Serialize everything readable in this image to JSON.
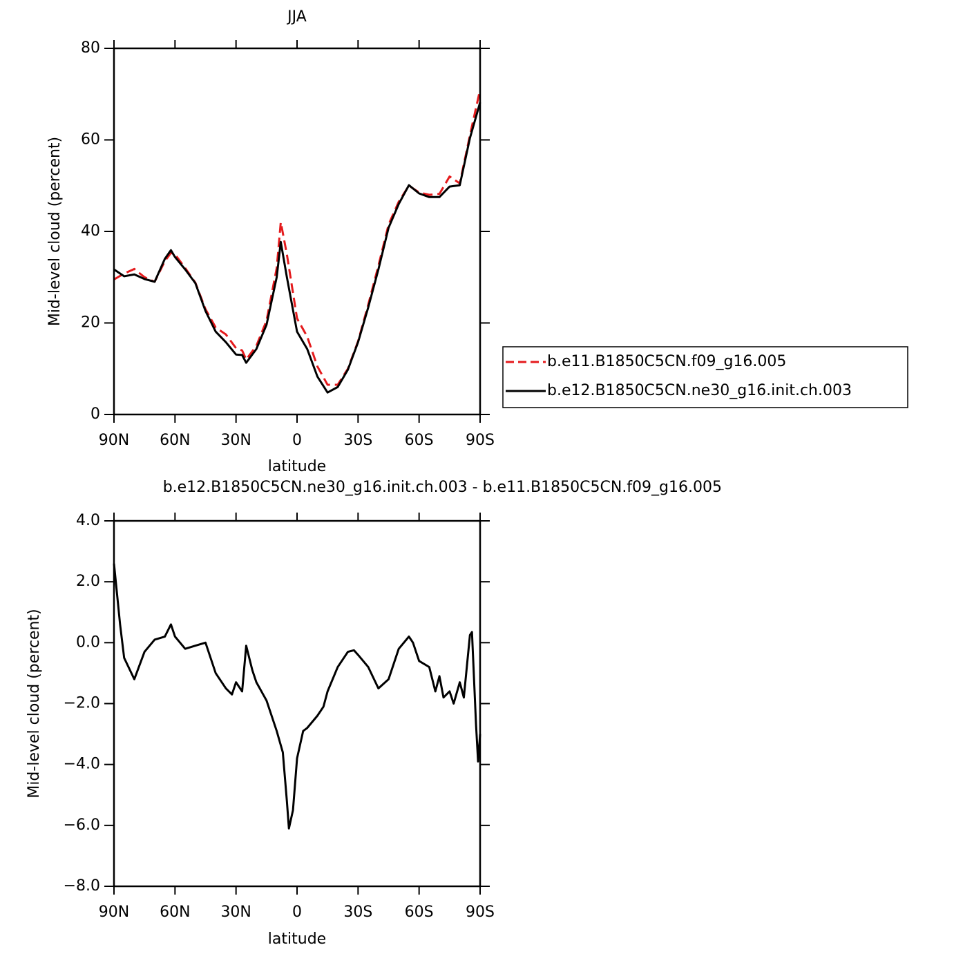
{
  "chart_data": [
    {
      "type": "line",
      "title": "JJA",
      "xlabel": "latitude",
      "ylabel": "Mid-level cloud (percent)",
      "x": [
        90,
        85,
        80,
        75,
        70,
        65,
        62,
        60,
        55,
        50,
        45,
        40,
        35,
        30,
        27,
        25,
        20,
        15,
        10,
        8,
        5,
        0,
        -5,
        -10,
        -15,
        -20,
        -25,
        -30,
        -35,
        -40,
        -45,
        -50,
        -55,
        -60,
        -65,
        -70,
        -75,
        -80,
        -85,
        -90
      ],
      "series": [
        {
          "name": "b.e11.B1850C5CN.f09_g16.005",
          "color": "#e41a1c",
          "line_style": "dashed",
          "values": [
            29.5,
            30.8,
            31.8,
            30,
            29,
            33.5,
            35.3,
            35,
            32,
            28.8,
            23,
            19,
            17.5,
            14.5,
            14,
            12,
            15,
            20.5,
            32,
            42,
            35,
            21,
            17,
            10.5,
            6.5,
            6.5,
            10,
            16,
            24,
            32.5,
            41.5,
            46.5,
            50,
            48.5,
            48,
            48.2,
            52,
            50.5,
            61,
            71
          ]
        },
        {
          "name": "b.e12.B1850C5CN.ne30_g16.init.ch.003",
          "color": "#000000",
          "line_style": "solid",
          "values": [
            31.7,
            30.2,
            30.6,
            29.6,
            29,
            34,
            35.9,
            34.4,
            31.7,
            28.7,
            22.6,
            18.1,
            15.8,
            13.1,
            13,
            11.3,
            14.3,
            19.6,
            30,
            37.7,
            30,
            18.1,
            14.3,
            8.3,
            4.8,
            6,
            9.8,
            15.8,
            23.4,
            31.7,
            40.8,
            46,
            50.1,
            48.3,
            47.5,
            47.5,
            49.8,
            50.1,
            60.4,
            68.2
          ]
        }
      ],
      "xlim": [
        90,
        -90
      ],
      "ylim": [
        0,
        80
      ],
      "xticks": [
        {
          "value": 90,
          "label": "90N"
        },
        {
          "value": 60,
          "label": "60N"
        },
        {
          "value": 30,
          "label": "30N"
        },
        0,
        {
          "value": -30,
          "label": "30S"
        },
        {
          "value": -60,
          "label": "60S"
        },
        {
          "value": -90,
          "label": "90S"
        }
      ],
      "yticks": [
        0,
        20,
        40,
        60,
        80
      ],
      "legend": "right"
    },
    {
      "type": "line",
      "title": "b.e12.B1850C5CN.ne30_g16.init.ch.003 - b.e11.B1850C5CN.f09_g16.005",
      "xlabel": "latitude",
      "ylabel": "Mid-level cloud (percent)",
      "x": [
        90,
        87,
        85,
        80,
        75,
        70,
        65,
        62,
        60,
        55,
        50,
        45,
        40,
        35,
        32,
        30,
        27,
        25,
        22,
        20,
        15,
        10,
        7,
        5,
        4,
        2,
        0,
        -3,
        -5,
        -10,
        -13,
        -15,
        -20,
        -25,
        -28,
        -30,
        -35,
        -40,
        -45,
        -50,
        -55,
        -57,
        -60,
        -65,
        -68,
        -70,
        -72,
        -75,
        -77,
        -80,
        -82,
        -85,
        -86,
        -88,
        -89,
        -90
      ],
      "series": [
        {
          "name": "difference",
          "color": "#000000",
          "line_style": "solid",
          "values": [
            2.6,
            0.6,
            -0.5,
            -1.2,
            -0.3,
            0.1,
            0.2,
            0.6,
            0.2,
            -0.2,
            -0.1,
            0,
            -1,
            -1.5,
            -1.7,
            -1.3,
            -1.6,
            -0.1,
            -0.9,
            -1.3,
            -1.9,
            -2.9,
            -3.6,
            -5.2,
            -6.1,
            -5.5,
            -3.8,
            -2.9,
            -2.8,
            -2.4,
            -2.1,
            -1.6,
            -0.8,
            -0.3,
            -0.25,
            -0.4,
            -0.8,
            -1.5,
            -1.2,
            -0.2,
            0.2,
            0,
            -0.6,
            -0.8,
            -1.6,
            -1.1,
            -1.8,
            -1.6,
            -2.0,
            -1.3,
            -1.8,
            0.25,
            0.35,
            -2.7,
            -3.9,
            -3.0
          ]
        }
      ],
      "xlim": [
        90,
        -90
      ],
      "ylim": [
        -8,
        4
      ],
      "xticks": [
        {
          "value": 90,
          "label": "90N"
        },
        {
          "value": 60,
          "label": "60N"
        },
        {
          "value": 30,
          "label": "30N"
        },
        0,
        {
          "value": -30,
          "label": "30S"
        },
        {
          "value": -60,
          "label": "60S"
        },
        {
          "value": -90,
          "label": "90S"
        }
      ],
      "yticks": [
        {
          "value": -8,
          "label": "−8.0"
        },
        {
          "value": -6,
          "label": "−6.0"
        },
        {
          "value": -4,
          "label": "−4.0"
        },
        {
          "value": -2,
          "label": "−2.0"
        },
        {
          "value": 0,
          "label": "0.0"
        },
        {
          "value": 2,
          "label": "2.0"
        },
        {
          "value": 4,
          "label": "4.0"
        }
      ]
    }
  ]
}
